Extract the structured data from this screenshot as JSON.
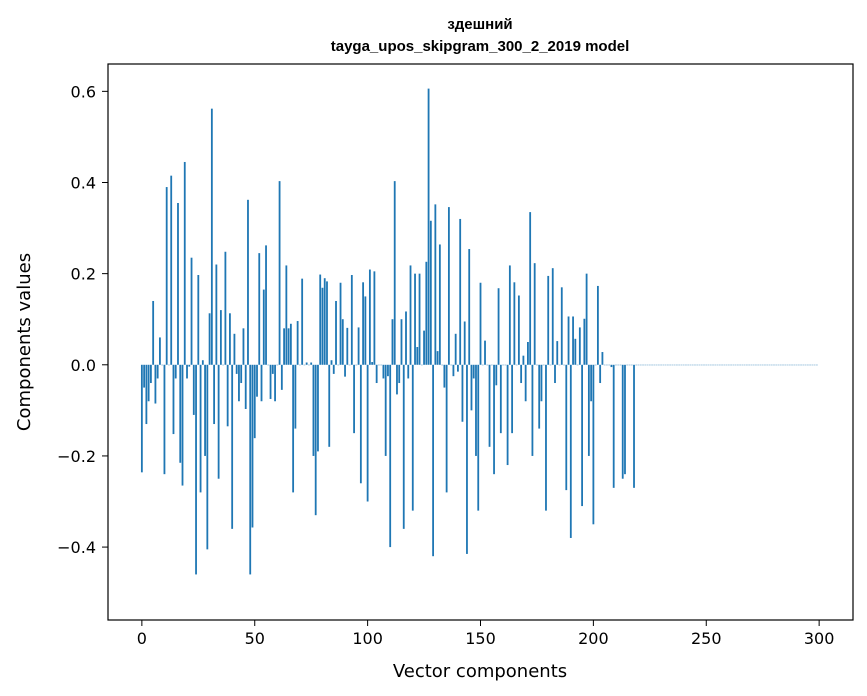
{
  "chart_data": {
    "type": "bar",
    "title": "здешний",
    "subtitle": "tayga_upos_skipgram_300_2_2019 model",
    "xlabel": "Vector components",
    "ylabel": "Components values",
    "xlim": [
      -15,
      315
    ],
    "ylim": [
      -0.56,
      0.66
    ],
    "xticks": [
      0,
      50,
      100,
      150,
      200,
      250,
      300
    ],
    "yticks": [
      -0.4,
      -0.2,
      0.0,
      0.2,
      0.4,
      0.6
    ],
    "ytick_labels": [
      "−0.4",
      "−0.2",
      "0.0",
      "0.2",
      "0.4",
      "0.6"
    ],
    "grid": false,
    "bar_color": "#1f77b4",
    "series": [
      {
        "values": [
          -0.236,
          -0.05,
          -0.13,
          -0.08,
          -0.04,
          0.14,
          -0.085,
          -0.03,
          0.06,
          0.0,
          -0.24,
          0.39,
          0.0,
          0.415,
          -0.152,
          -0.03,
          0.355,
          -0.215,
          -0.265,
          0.445,
          -0.03,
          -0.004,
          0.235,
          -0.11,
          -0.46,
          0.197,
          -0.28,
          0.01,
          -0.2,
          -0.405,
          0.113,
          0.562,
          -0.13,
          0.22,
          -0.25,
          0.12,
          0.0,
          0.248,
          -0.135,
          0.113,
          -0.36,
          0.068,
          -0.02,
          -0.08,
          -0.04,
          0.08,
          -0.097,
          0.362,
          -0.46,
          -0.357,
          -0.161,
          -0.07,
          0.245,
          -0.08,
          0.165,
          0.262,
          0.0,
          -0.075,
          -0.02,
          -0.08,
          0.0,
          0.403,
          -0.055,
          0.08,
          0.218,
          0.08,
          0.09,
          -0.28,
          -0.14,
          0.096,
          0.0,
          0.189,
          0.0,
          0.005,
          0.0,
          0.005,
          -0.2,
          -0.33,
          -0.19,
          0.198,
          0.169,
          0.19,
          0.183,
          -0.18,
          0.01,
          -0.02,
          0.14,
          0.0,
          0.18,
          0.1,
          -0.026,
          0.081,
          0.0,
          0.197,
          -0.15,
          0.0,
          0.082,
          -0.26,
          0.181,
          0.15,
          -0.3,
          0.209,
          0.006,
          0.205,
          -0.04,
          0.0,
          0.0,
          -0.03,
          -0.2,
          -0.025,
          -0.4,
          0.1,
          0.403,
          -0.065,
          -0.04,
          0.1,
          -0.36,
          0.117,
          -0.03,
          0.218,
          -0.32,
          0.2,
          0.039,
          0.2,
          0.0,
          0.075,
          0.226,
          0.606,
          0.316,
          -0.42,
          0.352,
          0.03,
          0.264,
          0.0,
          -0.05,
          -0.28,
          0.346,
          0.0,
          -0.025,
          0.068,
          -0.015,
          0.32,
          -0.125,
          0.095,
          -0.415,
          0.254,
          -0.1,
          -0.03,
          -0.2,
          -0.32,
          0.18,
          0.0,
          0.053,
          0.0,
          -0.18,
          0.0,
          -0.24,
          -0.045,
          0.168,
          -0.15,
          0.0,
          0.0,
          -0.22,
          0.218,
          -0.15,
          0.181,
          0.0,
          0.152,
          -0.04,
          0.02,
          -0.08,
          0.05,
          0.335,
          -0.2,
          0.223,
          0.0,
          -0.14,
          -0.08,
          0.0,
          -0.32,
          0.195,
          0.0,
          0.212,
          -0.04,
          0.052,
          0.0,
          0.17,
          0.0,
          -0.275,
          0.106,
          -0.38,
          0.106,
          0.057,
          0.0,
          0.082,
          -0.31,
          0.101,
          0.2,
          -0.2,
          -0.08,
          -0.35,
          0.0,
          0.173,
          -0.04,
          0.028,
          0.0,
          0.0,
          0.0,
          -0.005,
          -0.27,
          0.0,
          0.0,
          0.0,
          -0.25,
          -0.24,
          0.0,
          0.0,
          0.0,
          -0.27,
          0.0,
          0.0,
          0.0,
          0.0,
          0.0,
          0.0,
          0.0,
          0.0,
          0.0,
          0.0,
          0.0,
          0.0,
          0.0,
          0.0,
          0.0,
          0.0,
          0.0,
          0.0,
          0.0,
          0.0,
          0.0,
          0.0,
          0.0,
          0.0,
          0.0,
          0.0,
          0.0,
          0.0,
          0.0,
          0.0,
          0.0,
          0.0,
          0.0,
          0.0,
          0.0,
          0.0,
          0.0,
          0.0,
          0.0,
          0.0,
          0.0,
          0.0,
          0.0,
          0.0,
          0.0,
          0.0,
          0.0,
          0.0,
          0.0,
          0.0,
          0.0,
          0.0,
          0.0,
          0.0,
          0.0,
          0.0,
          0.0,
          0.0,
          0.0,
          0.0,
          0.0,
          0.0,
          0.0,
          0.0,
          0.0,
          0.0,
          0.0,
          0.0,
          0.0,
          0.0,
          0.0,
          0.0,
          0.0,
          0.0,
          0.0,
          0.0,
          0.0,
          0.0,
          0.0,
          0.0,
          0.0
        ]
      }
    ]
  }
}
